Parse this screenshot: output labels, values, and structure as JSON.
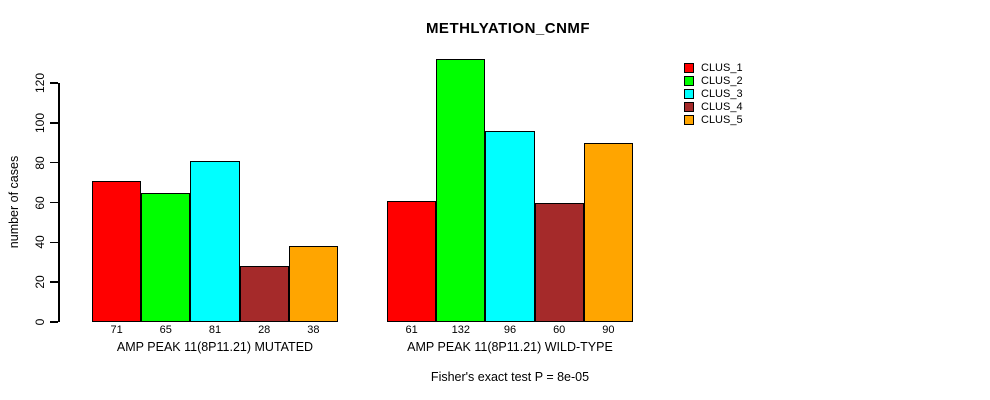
{
  "chart_data": {
    "type": "bar",
    "title": "METHLYATION_CNMF",
    "ylabel": "number of cases",
    "xlabel": "",
    "footer": "Fisher's exact test P = 8e-05",
    "categories": [
      "AMP PEAK 11(8P11.21) MUTATED",
      "AMP PEAK 11(8P11.21) WILD-TYPE"
    ],
    "series": [
      {
        "name": "CLUS_1",
        "color": "#FF0000",
        "values": [
          71,
          61
        ]
      },
      {
        "name": "CLUS_2",
        "color": "#00FF00",
        "values": [
          65,
          132
        ]
      },
      {
        "name": "CLUS_3",
        "color": "#00FFFF",
        "values": [
          81,
          96
        ]
      },
      {
        "name": "CLUS_4",
        "color": "#A52A2A",
        "values": [
          28,
          60
        ]
      },
      {
        "name": "CLUS_5",
        "color": "#FFA500",
        "values": [
          38,
          90
        ]
      }
    ],
    "yticks": [
      0,
      20,
      40,
      60,
      80,
      100,
      120
    ],
    "ylim": [
      0,
      132
    ],
    "grid": false,
    "bar_value_labels": true,
    "legend_position": "top-right",
    "background_color": "#FFFFFF",
    "bar_border_color": "#000000"
  }
}
